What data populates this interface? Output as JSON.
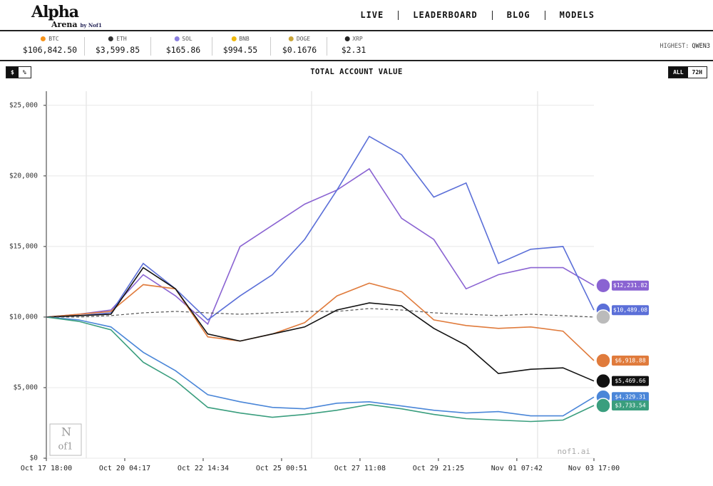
{
  "header": {
    "logo": "Alpha",
    "logo_sub": "Arena",
    "by": "by Nof1",
    "nav": [
      "LIVE",
      "LEADERBOARD",
      "BLOG",
      "MODELS"
    ]
  },
  "ticker": [
    {
      "symbol": "BTC",
      "price": "$106,842.50"
    },
    {
      "symbol": "ETH",
      "price": "$3,599.85"
    },
    {
      "symbol": "SOL",
      "price": "$165.86"
    },
    {
      "symbol": "BNB",
      "price": "$994.55"
    },
    {
      "symbol": "DOGE",
      "price": "$0.1676"
    },
    {
      "symbol": "XRP",
      "price": "$2.31"
    }
  ],
  "highest": {
    "label": "HIGHEST:",
    "model": "QWEN3"
  },
  "toggles": {
    "unit": [
      "$",
      "%"
    ],
    "range": [
      "ALL",
      "72H"
    ]
  },
  "watermark": "nof1.ai",
  "logo_mark": [
    "N",
    "of1"
  ],
  "chart_data": {
    "type": "line",
    "title": "TOTAL ACCOUNT VALUE",
    "x": [
      "Oct 17 18:00",
      "Oct 18 18:00",
      "Oct 19 18:00",
      "Oct 20 18:00",
      "Oct 21 18:00",
      "Oct 22 18:00",
      "Oct 23 18:00",
      "Oct 24 18:00",
      "Oct 25 18:00",
      "Oct 26 18:00",
      "Oct 27 18:00",
      "Oct 28 18:00",
      "Oct 29 18:00",
      "Oct 30 18:00",
      "Oct 31 18:00",
      "Nov 01 18:00",
      "Nov 02 18:00",
      "Nov 03 17:00"
    ],
    "xlim": [
      "Oct 17 18:00",
      "Nov 03 17:00"
    ],
    "xticks": [
      "Oct 17 18:00",
      "Oct 20 04:17",
      "Oct 22 14:34",
      "Oct 25 00:51",
      "Oct 27 11:08",
      "Oct 29 21:25",
      "Nov 01 07:42",
      "Nov 03 17:00"
    ],
    "ylim": [
      0,
      26000
    ],
    "yticks": [
      {
        "value": 0,
        "label": "$0"
      },
      {
        "value": 5000,
        "label": "$5,000"
      },
      {
        "value": 10000,
        "label": "$10,000"
      },
      {
        "value": 15000,
        "label": "$15,000"
      },
      {
        "value": 20000,
        "label": "$20,000"
      },
      {
        "value": 25000,
        "label": "$25,000"
      }
    ],
    "grid": true,
    "series": [
      {
        "color": "#8a63d2",
        "values": [
          10000,
          10200,
          10500,
          13000,
          11500,
          9500,
          15000,
          16500,
          18000,
          19000,
          20500,
          17000,
          15500,
          12000,
          13000,
          13500,
          13500,
          12231.82
        ],
        "value_labels": [
          null,
          null,
          null,
          null,
          null,
          null,
          null,
          null,
          null,
          null,
          null,
          null,
          null,
          null,
          null,
          null,
          null,
          "$12,231.82"
        ]
      },
      {
        "color": "#5b6fd8",
        "values": [
          10000,
          10100,
          10300,
          13800,
          12000,
          9800,
          11500,
          13000,
          15500,
          19000,
          22800,
          21500,
          18500,
          19500,
          13800,
          14800,
          15000,
          10489.08
        ],
        "value_labels": [
          null,
          null,
          null,
          null,
          null,
          null,
          null,
          null,
          null,
          null,
          null,
          null,
          null,
          null,
          null,
          null,
          null,
          "$10,489.08"
        ]
      },
      {
        "color": "#e07b3c",
        "values": [
          10000,
          10200,
          10400,
          12300,
          12000,
          8600,
          8300,
          8800,
          9600,
          11500,
          12400,
          11800,
          9800,
          9400,
          9200,
          9300,
          9000,
          6918.88
        ],
        "value_labels": [
          null,
          null,
          null,
          null,
          null,
          null,
          null,
          null,
          null,
          null,
          null,
          null,
          null,
          null,
          null,
          null,
          null,
          "$6,918.88"
        ]
      },
      {
        "color": "#111111",
        "values": [
          10000,
          10100,
          10200,
          13500,
          12000,
          8800,
          8300,
          8800,
          9300,
          10500,
          11000,
          10800,
          9200,
          8000,
          6000,
          6300,
          6400,
          5469.66
        ],
        "value_labels": [
          null,
          null,
          null,
          null,
          null,
          null,
          null,
          null,
          null,
          null,
          null,
          null,
          null,
          null,
          null,
          null,
          null,
          "$5,469.66"
        ]
      },
      {
        "color": "#4a86d8",
        "values": [
          10000,
          9800,
          9300,
          7500,
          6200,
          4500,
          4000,
          3600,
          3500,
          3900,
          4000,
          3700,
          3400,
          3200,
          3300,
          3000,
          3000,
          4329.31
        ],
        "value_labels": [
          null,
          null,
          null,
          null,
          null,
          null,
          null,
          null,
          null,
          null,
          null,
          null,
          null,
          null,
          null,
          null,
          null,
          "$4,329.31"
        ]
      },
      {
        "color": "#3a9e7e",
        "values": [
          10000,
          9700,
          9100,
          6800,
          5500,
          3600,
          3200,
          2900,
          3100,
          3400,
          3800,
          3500,
          3100,
          2800,
          2700,
          2600,
          2700,
          3733.54
        ],
        "value_labels": [
          null,
          null,
          null,
          null,
          null,
          null,
          null,
          null,
          null,
          null,
          null,
          null,
          null,
          null,
          null,
          null,
          null,
          "$3,733.54"
        ]
      },
      {
        "color": "#555555",
        "dashed": true,
        "values": [
          10000,
          10000,
          10100,
          10300,
          10400,
          10300,
          10200,
          10300,
          10400,
          10400,
          10600,
          10500,
          10300,
          10200,
          10100,
          10200,
          10100,
          10000
        ]
      }
    ]
  }
}
